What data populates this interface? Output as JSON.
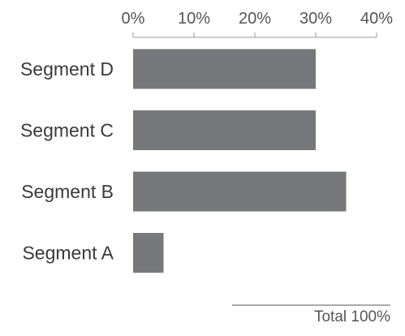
{
  "chart_data": {
    "type": "bar",
    "orientation": "horizontal",
    "categories": [
      "Segment D",
      "Segment C",
      "Segment B",
      "Segment A"
    ],
    "values": [
      30,
      30,
      35,
      5
    ],
    "xlim": [
      0,
      40
    ],
    "x_ticks": [
      "0%",
      "10%",
      "20%",
      "30%",
      "40%"
    ],
    "x_axis_position": "top",
    "grid": false,
    "legend": "none",
    "footer_note": "Total 100%",
    "colors": {
      "bar": "#77787b",
      "axis": "#9a9a9a",
      "tick_text": "#555555",
      "category_text": "#3a3a3a"
    }
  }
}
